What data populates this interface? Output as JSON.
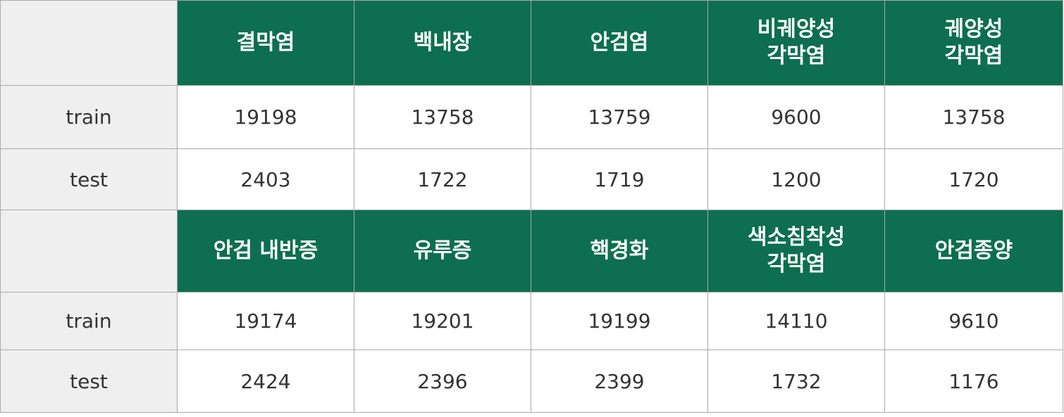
{
  "sections": [
    {
      "headers": [
        "결막염",
        "백내장",
        "안검염",
        "비궤양성\n각막염",
        "궤양성\n각막염"
      ],
      "rows": [
        {
          "label": "train",
          "values": [
            "19198",
            "13758",
            "13759",
            "9600",
            "13758"
          ]
        },
        {
          "label": "test",
          "values": [
            "2403",
            "1722",
            "1719",
            "1200",
            "1720"
          ]
        }
      ]
    },
    {
      "headers": [
        "안검 내반증",
        "유루증",
        "핵경화",
        "색소침착성\n각막염",
        "안검종양"
      ],
      "rows": [
        {
          "label": "train",
          "values": [
            "19174",
            "19201",
            "19199",
            "14110",
            "9610"
          ]
        },
        {
          "label": "test",
          "values": [
            "2424",
            "2396",
            "2399",
            "1732",
            "1176"
          ]
        }
      ]
    }
  ],
  "colors": {
    "header_bg": "#0d6f4f",
    "header_text": "#ffffff",
    "label_bg": "#efefef",
    "border": "#a9a9a9"
  }
}
